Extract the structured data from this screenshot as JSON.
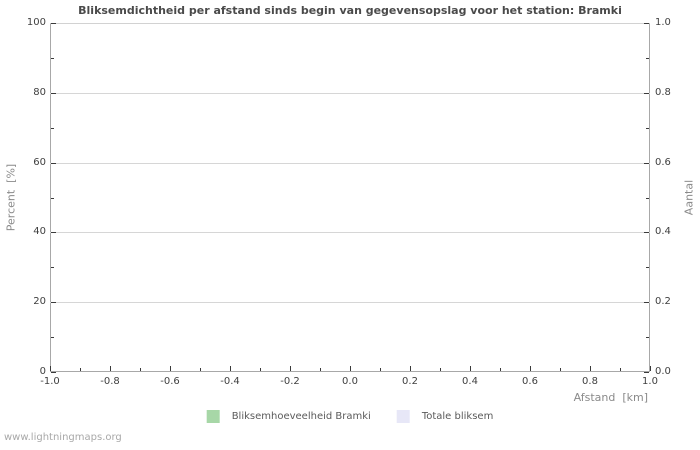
{
  "page": {
    "watermark": "www.lightningmaps.org"
  },
  "chart_data": {
    "type": "bar",
    "title": "Bliksemdichtheid per afstand sinds begin van gegevensopslag voor het station: Bramki",
    "xlabel": "Afstand  [km]",
    "ylabel_left": "Percent  [%]",
    "ylabel_right": "Aantal",
    "xlim": [
      -1.0,
      1.0
    ],
    "ylim_left": [
      0,
      100
    ],
    "ylim_right": [
      0.0,
      1.0
    ],
    "x_tick_labels": [
      "-1.0",
      "-0.8",
      "-0.6",
      "-0.4",
      "-0.2",
      "0.0",
      "0.2",
      "0.4",
      "0.6",
      "0.8",
      "1.0"
    ],
    "y_left_tick_labels": [
      "0",
      "20",
      "40",
      "60",
      "80",
      "100"
    ],
    "y_right_tick_labels": [
      "0.0",
      "0.2",
      "0.4",
      "0.6",
      "0.8",
      "1.0"
    ],
    "grid": "horizontal-major-only",
    "legend_position": "bottom-center",
    "legend": [
      {
        "label": "Bliksemhoeveelheid Bramki",
        "color": "#a7d7a7"
      },
      {
        "label": "Totale bliksem",
        "color": "#e7e7f7"
      }
    ],
    "series": [
      {
        "name": "Bliksemhoeveelheid Bramki",
        "x": [],
        "values": []
      },
      {
        "name": "Totale bliksem",
        "x": [],
        "values": []
      }
    ],
    "colors": {
      "title": "#4a4a4a",
      "tick_label": "#3f3f3f",
      "axis_label": "#8a8a8a",
      "grid": "#d6d6d6",
      "axis_border": "#a8a8a8",
      "tick_mark": "#3a3a3a",
      "watermark": "#a8a8a8",
      "background": "#ffffff"
    }
  }
}
